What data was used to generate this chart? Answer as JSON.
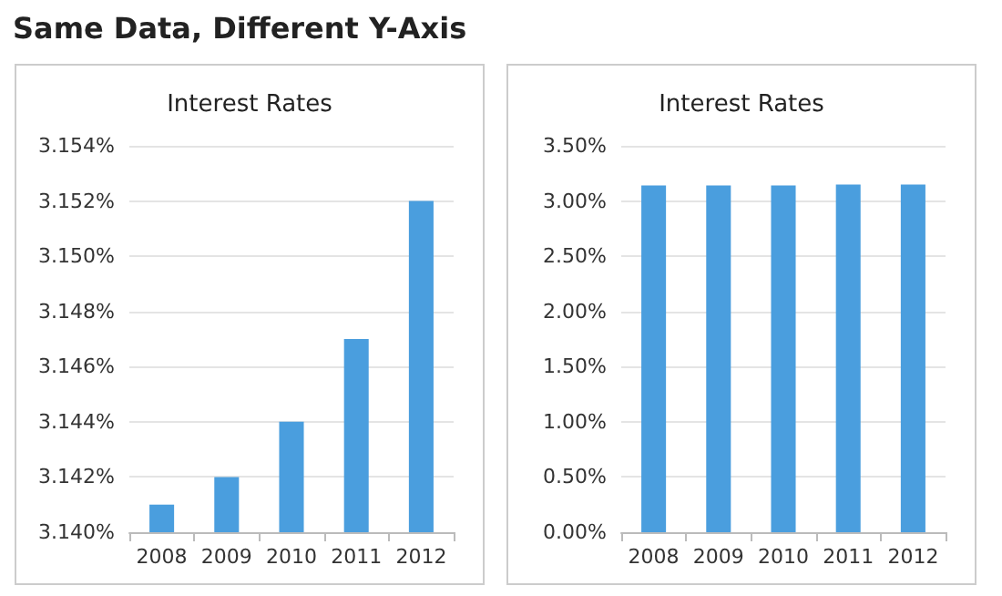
{
  "chart_data": [
    {
      "type": "bar",
      "title": "Interest Rates",
      "annotations": [
        "Same Data, Different Y-Axis"
      ],
      "categories": [
        "2008",
        "2009",
        "2010",
        "2011",
        "2012"
      ],
      "values": [
        3.141,
        3.142,
        3.144,
        3.147,
        3.152
      ],
      "color": "#4a9ede",
      "ylim": [
        3.14,
        3.154
      ],
      "yticks": [
        {
          "value": 3.14,
          "label": "3.140%"
        },
        {
          "value": 3.142,
          "label": "3.142%"
        },
        {
          "value": 3.144,
          "label": "3.144%"
        },
        {
          "value": 3.146,
          "label": "3.146%"
        },
        {
          "value": 3.148,
          "label": "3.148%"
        },
        {
          "value": 3.15,
          "label": "3.150%"
        },
        {
          "value": 3.152,
          "label": "3.152%"
        },
        {
          "value": 3.154,
          "label": "3.154%"
        }
      ],
      "grid": "y"
    },
    {
      "type": "bar",
      "title": "Interest Rates",
      "categories": [
        "2008",
        "2009",
        "2010",
        "2011",
        "2012"
      ],
      "values": [
        3.14,
        3.14,
        3.14,
        3.15,
        3.15
      ],
      "color": "#4a9ede",
      "ylim": [
        0,
        3.5
      ],
      "yticks": [
        {
          "value": 0,
          "label": "0.00%"
        },
        {
          "value": 0.5,
          "label": "0.50%"
        },
        {
          "value": 1,
          "label": "1.00%"
        },
        {
          "value": 1.5,
          "label": "1.50%"
        },
        {
          "value": 2,
          "label": "2.00%"
        },
        {
          "value": 2.5,
          "label": "2.50%"
        },
        {
          "value": 3,
          "label": "3.00%"
        },
        {
          "value": 3.5,
          "label": "3.50%"
        }
      ],
      "grid": "y"
    }
  ]
}
